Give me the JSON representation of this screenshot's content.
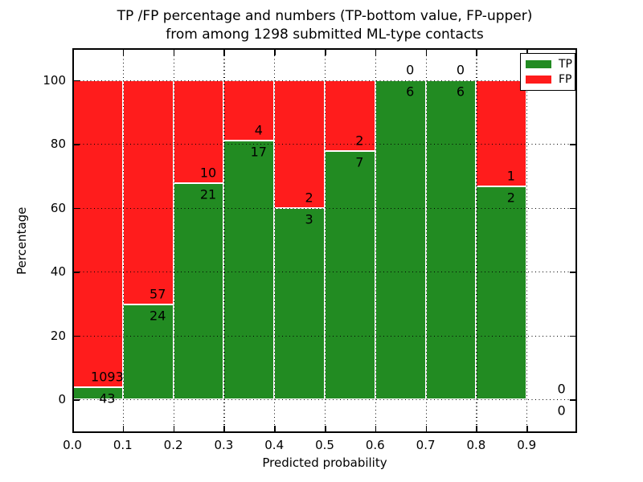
{
  "title": {
    "line1": "TP /FP percentage and numbers (TP-bottom value, FP-upper)",
    "line2": "from among 1298 submitted ML-type contacts"
  },
  "axes": {
    "xlabel": "Predicted probability",
    "ylabel": "Percentage",
    "x_tick_labels": [
      "0.0",
      "0.1",
      "0.2",
      "0.3",
      "0.4",
      "0.5",
      "0.6",
      "0.7",
      "0.8",
      "0.9"
    ],
    "y_tick_labels": [
      "0",
      "20",
      "40",
      "60",
      "80",
      "100"
    ],
    "y_tick_values": [
      0,
      20,
      40,
      60,
      80,
      100
    ],
    "xlim": [
      0.0,
      1.0
    ],
    "ylim": [
      -10.5,
      110
    ],
    "grid": "dotted-black-on-top"
  },
  "legend": {
    "position": "upper-right",
    "entries": [
      {
        "label": "TP",
        "color": "#228b22"
      },
      {
        "label": "FP",
        "color": "#ff1c1c"
      }
    ]
  },
  "colors": {
    "tp_green": "#228b22",
    "fp_red": "#ff1c1c",
    "bar_edge": "#ffffff",
    "grid": "#000000",
    "background": "#ffffff"
  },
  "chart_data": {
    "type": "bar",
    "stacked": true,
    "normalized": "each bin scaled to 100%",
    "title": "TP /FP percentage and numbers (TP-bottom value, FP-upper) from among 1298 submitted ML-type contacts",
    "xlabel": "Predicted probability",
    "ylabel": "Percentage",
    "total_contacts": 1298,
    "bin_edges": [
      0.0,
      0.1,
      0.2,
      0.3,
      0.4,
      0.5,
      0.6,
      0.7,
      0.8,
      0.9,
      1.0
    ],
    "series": [
      {
        "name": "TP",
        "color": "#228b22",
        "counts": [
          43,
          24,
          21,
          17,
          3,
          7,
          6,
          6,
          2,
          0
        ]
      },
      {
        "name": "FP",
        "color": "#ff1c1c",
        "counts": [
          1093,
          57,
          10,
          4,
          2,
          2,
          0,
          0,
          1,
          0
        ]
      }
    ],
    "tp_percent_per_bin": [
      3.8,
      29.6,
      67.7,
      81.0,
      60.0,
      77.8,
      100.0,
      100.0,
      66.7,
      null
    ],
    "bar_value_labels": "FP count printed just above TP/FP boundary, TP count just below"
  }
}
